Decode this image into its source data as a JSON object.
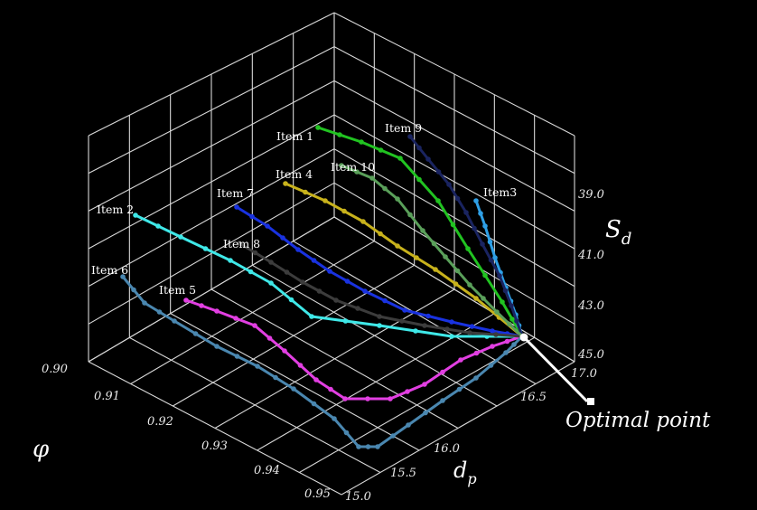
{
  "chart_data": {
    "type": "line",
    "dimensions": "3d",
    "axes": {
      "phi": {
        "label": "φ",
        "range": [
          0.9,
          0.95
        ],
        "ticks": [
          "0.90",
          "0.91",
          "0.92",
          "0.93",
          "0.94",
          "0.95"
        ]
      },
      "dp": {
        "label": "d",
        "label_subscript": "p",
        "range": [
          15.0,
          17.0
        ],
        "ticks": [
          "15.0",
          "15.5",
          "16.0",
          "16.5",
          "17.0"
        ]
      },
      "sd": {
        "label": "S",
        "label_subscript": "d",
        "range": [
          39.0,
          45.0
        ],
        "ticks": [
          "39.0",
          "41.0",
          "43.0",
          "45.0"
        ]
      }
    },
    "grid": true,
    "background": "#000000",
    "series": [
      {
        "name": "Item 1",
        "color": "#21c321",
        "label_color": "#ffffff"
      },
      {
        "name": "Item 2",
        "color": "#3fe8e8",
        "label_color": "#ffffff"
      },
      {
        "name": "Item3",
        "color": "#2e9fe6",
        "label_color": "#ffffff"
      },
      {
        "name": "Item 4",
        "color": "#c8b21c",
        "label_color": "#ffffff"
      },
      {
        "name": "Item 5",
        "color": "#e23fe2",
        "label_color": "#ffffff"
      },
      {
        "name": "Item 6",
        "color": "#4a87b0",
        "label_color": "#ffffff"
      },
      {
        "name": "Item 7",
        "color": "#1932e0",
        "label_color": "#ffffff"
      },
      {
        "name": "Item 8",
        "color": "#3c3c3c",
        "label_color": "#ffffff"
      },
      {
        "name": "Item 9",
        "color": "#1a2460",
        "label_color": "#ffffff"
      },
      {
        "name": "Item 10",
        "color": "#5aa05a",
        "label_color": "#ffffff"
      }
    ],
    "annotation": {
      "text": "Optimal point",
      "color": "#ffffff"
    }
  }
}
